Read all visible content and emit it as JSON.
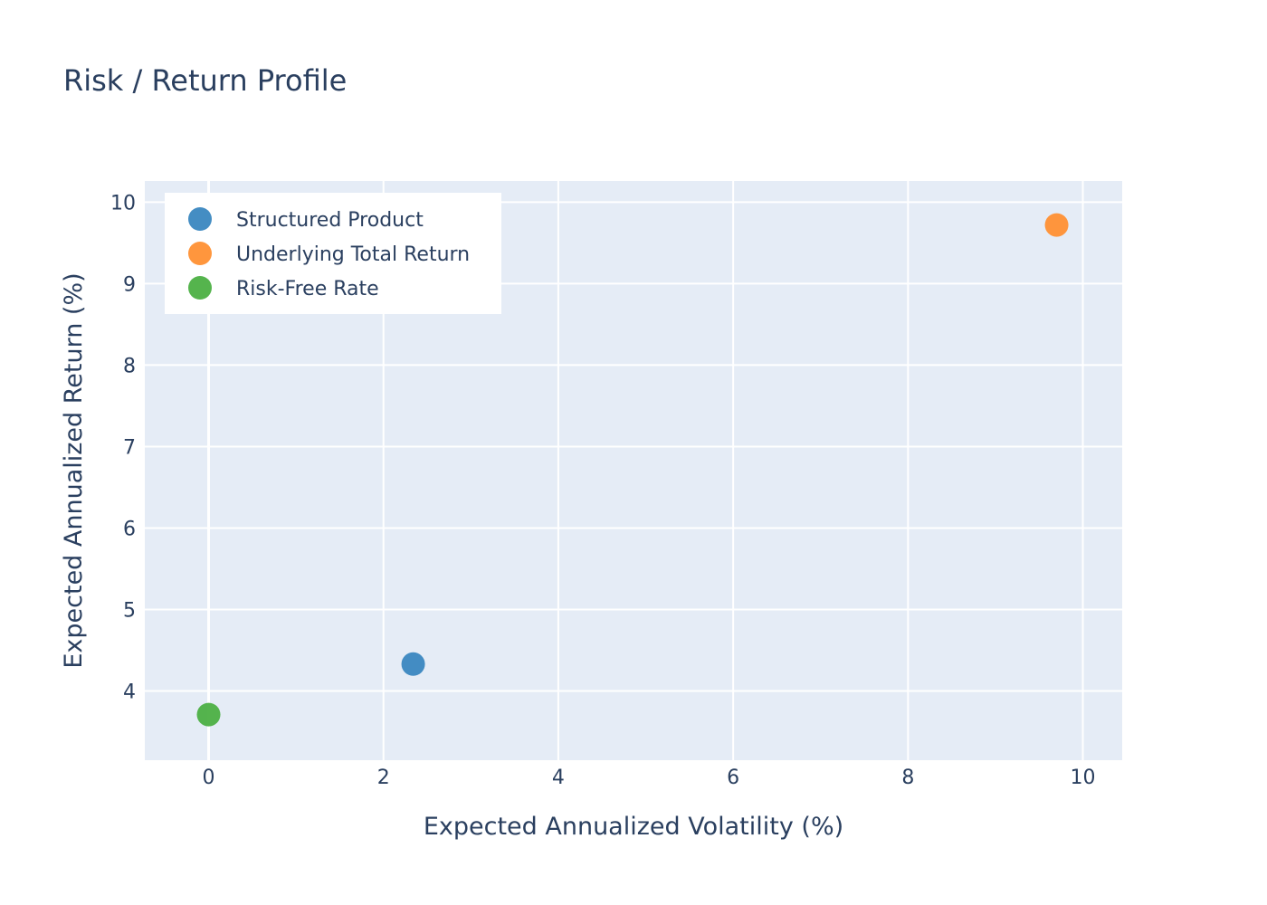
{
  "chart_data": {
    "type": "scatter",
    "title": "Risk / Return Profile",
    "xlabel": "Expected Annualized Volatility (%)",
    "ylabel": "Expected Annualized Return (%)",
    "xlim": [
      -0.73,
      10.45
    ],
    "ylim": [
      3.15,
      10.26
    ],
    "xticks": [
      0,
      2,
      4,
      6,
      8,
      10
    ],
    "yticks": [
      4,
      5,
      6,
      7,
      8,
      9,
      10
    ],
    "grid": true,
    "legend_position": "top-left",
    "series": [
      {
        "name": "Structured Product",
        "color": "#3a87c0",
        "x": [
          2.34
        ],
        "y": [
          4.33
        ]
      },
      {
        "name": "Underlying Total Return",
        "color": "#ff9033",
        "x": [
          9.7
        ],
        "y": [
          9.72
        ]
      },
      {
        "name": "Risk-Free Rate",
        "color": "#4cb043",
        "x": [
          0.0
        ],
        "y": [
          3.71
        ]
      }
    ]
  }
}
